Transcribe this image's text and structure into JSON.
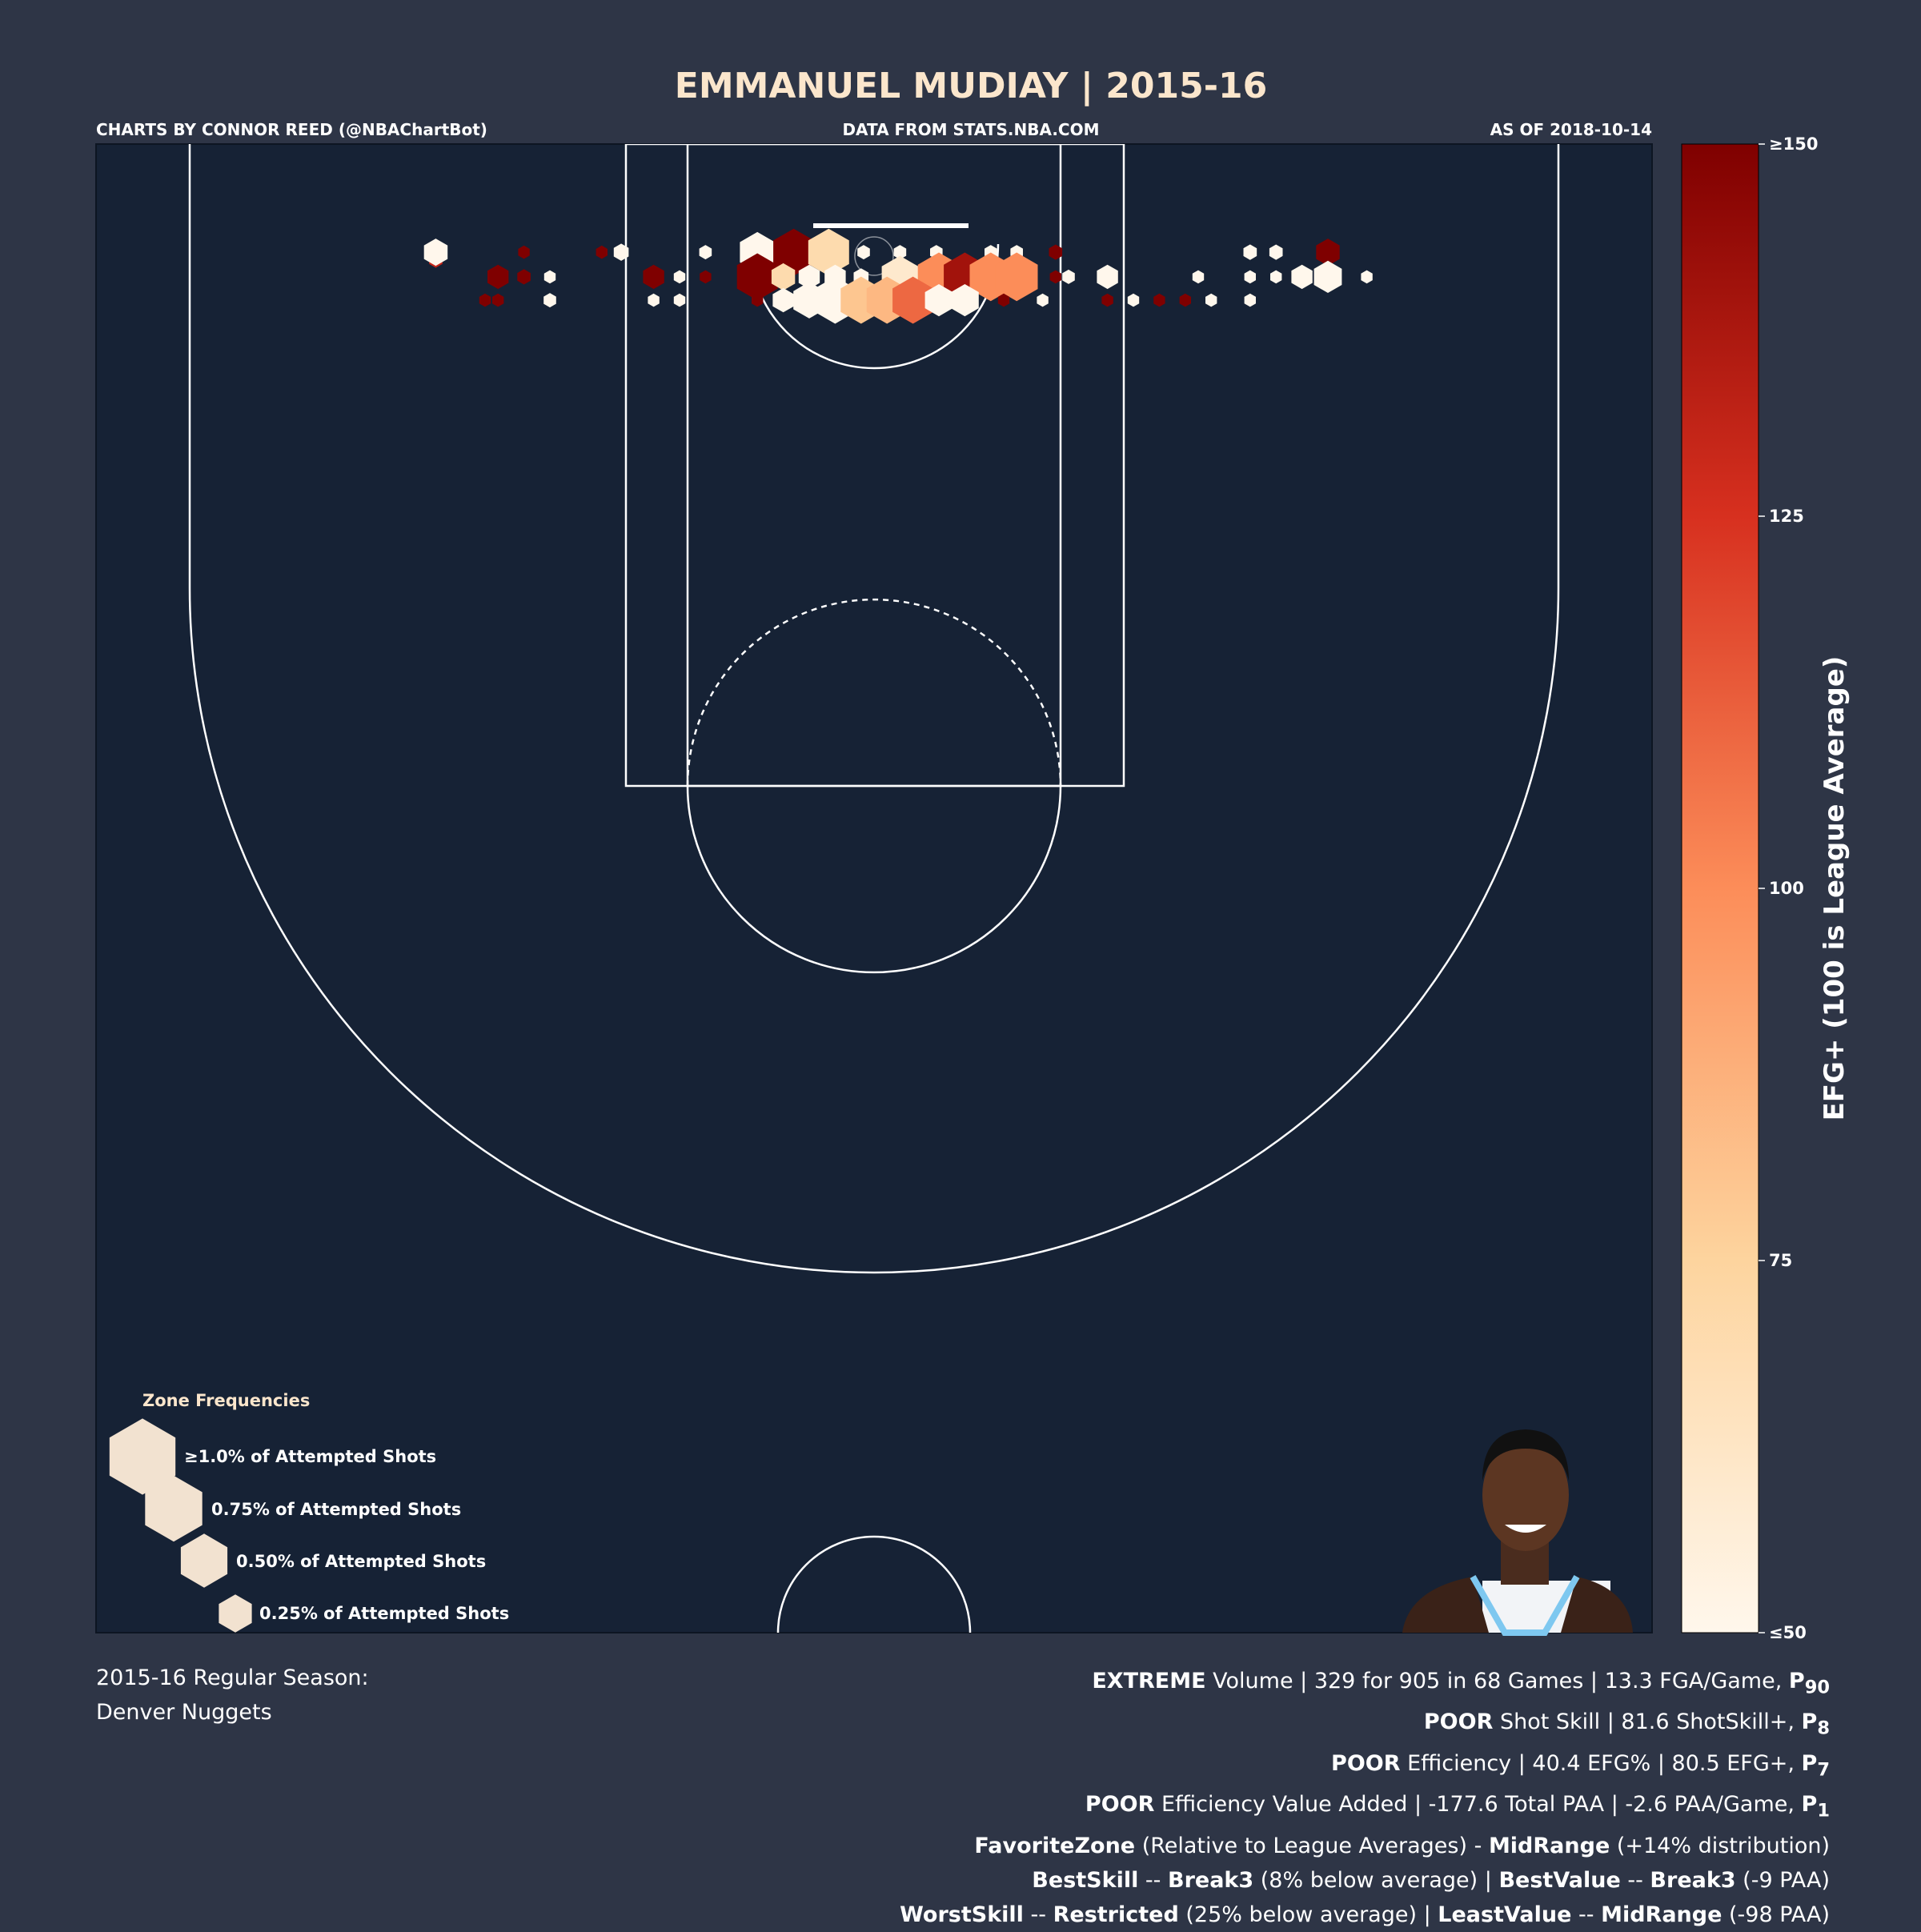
{
  "title": "EMMANUEL MUDIAY | 2015-16",
  "credits": {
    "left": "CHARTS BY CONNOR REED (@NBAChartBot)",
    "center": "DATA FROM STATS.NBA.COM",
    "right": "AS OF 2018-10-14"
  },
  "colorbar": {
    "label": "EFG+ (100 is League Average)",
    "ticks": [
      "≥150",
      "125",
      "100",
      "75",
      "≤50"
    ],
    "tick_values": [
      150,
      125,
      100,
      75,
      50
    ]
  },
  "legend": {
    "title": "Zone Frequencies",
    "items": [
      "≥1.0% of Attempted Shots",
      "0.75% of Attempted Shots",
      "0.50% of Attempted Shots",
      "0.25% of Attempted Shots"
    ],
    "values": [
      1.0,
      0.75,
      0.5,
      0.25
    ]
  },
  "season": {
    "line1": "2015-16 Regular Season:",
    "line2": "Denver Nuggets"
  },
  "stats": {
    "volume": {
      "bold": "EXTREME",
      "text": " Volume | 329 for 905 in 68 Games | 13.3 FGA/Game, ",
      "p": "P",
      "p_sub": "90"
    },
    "shot_skill": {
      "bold": "POOR",
      "text": " Shot Skill | 81.6 ShotSkill+, ",
      "p": "P",
      "p_sub": "8"
    },
    "efficiency": {
      "bold": "POOR",
      "text": " Efficiency | 40.4 EFG% | 80.5 EFG+, ",
      "p": "P",
      "p_sub": "7"
    },
    "value_added": {
      "bold": "POOR",
      "text": " Efficiency Value Added | -177.6 Total PAA | -2.6 PAA/Game, ",
      "p": "P",
      "p_sub": "1"
    },
    "favorite": {
      "b1": "FavoriteZone",
      "t1": " (Relative to League Averages) - ",
      "b2": "MidRange",
      "t2": " (+14% distribution)"
    },
    "best": {
      "b1": "BestSkill",
      "t1": " -- ",
      "b2": "Break3",
      "t2": " (8% below average) | ",
      "b3": "BestValue",
      "t3": " -- ",
      "b4": "Break3",
      "t4": " (-9 PAA)"
    },
    "worst": {
      "b1": "WorstSkill",
      "t1": " -- ",
      "b2": "Restricted",
      "t2": " (25% below average) | ",
      "b3": "LeastValue",
      "t3": " -- ",
      "b4": "MidRange",
      "t4": " (-98 PAA)"
    }
  },
  "colors": {
    "background": "#2e3546",
    "court": "#162235",
    "lines": "#ffffff",
    "text": "#ffffff",
    "title": "#fbe6cc",
    "colormap": [
      "#fff7ec",
      "#fdd49e",
      "#fc8d59",
      "#d7301f",
      "#7f0000"
    ]
  },
  "player_photo_icon": "player-headshot",
  "chart_data": {
    "type": "hexbin",
    "x_unit": "court x (0.1 ft, basket at 0)",
    "y_unit": "court y (0.1 ft, basket at 0)",
    "size": "percent of attempted shots",
    "color": "EFG+",
    "color_range": [
      50,
      150
    ],
    "hexes": [
      [
        -338,
        3,
        0.08,
        130
      ],
      [
        -338,
        -3,
        0.25,
        50
      ],
      [
        -270,
        -3,
        0.06,
        150
      ],
      [
        -210,
        -3,
        0.06,
        150
      ],
      [
        -195,
        -3,
        0.1,
        50
      ],
      [
        -130,
        -3,
        0.07,
        50
      ],
      [
        -90,
        -3,
        0.55,
        50
      ],
      [
        -62,
        -3,
        0.75,
        150
      ],
      [
        -35,
        -3,
        0.75,
        70
      ],
      [
        -8,
        -3,
        0.07,
        50
      ],
      [
        20,
        -3,
        0.07,
        50
      ],
      [
        48,
        -3,
        0.07,
        50
      ],
      [
        90,
        -3,
        0.07,
        50
      ],
      [
        110,
        -3,
        0.07,
        50
      ],
      [
        140,
        -3,
        0.08,
        150
      ],
      [
        290,
        -3,
        0.08,
        50
      ],
      [
        290,
        -3,
        0.08,
        50
      ],
      [
        310,
        -3,
        0.08,
        50
      ],
      [
        350,
        -3,
        0.25,
        150
      ],
      [
        -290,
        16,
        0.2,
        150
      ],
      [
        -270,
        16,
        0.08,
        150
      ],
      [
        -250,
        16,
        0.06,
        50
      ],
      [
        -170,
        16,
        0.2,
        150
      ],
      [
        -150,
        16,
        0.06,
        50
      ],
      [
        -130,
        16,
        0.06,
        150
      ],
      [
        -90,
        16,
        0.75,
        150
      ],
      [
        -70,
        16,
        0.25,
        70
      ],
      [
        -50,
        16,
        0.2,
        50
      ],
      [
        -30,
        16,
        0.2,
        50
      ],
      [
        -10,
        16,
        0.1,
        50
      ],
      [
        20,
        16,
        0.6,
        60
      ],
      [
        50,
        16,
        0.8,
        100
      ],
      [
        70,
        16,
        0.8,
        140
      ],
      [
        90,
        16,
        0.8,
        100
      ],
      [
        110,
        16,
        0.8,
        100
      ],
      [
        140,
        16,
        0.06,
        150
      ],
      [
        150,
        16,
        0.07,
        50
      ],
      [
        180,
        16,
        0.2,
        50
      ],
      [
        250,
        16,
        0.06,
        50
      ],
      [
        290,
        16,
        0.06,
        50
      ],
      [
        310,
        16,
        0.06,
        50
      ],
      [
        330,
        16,
        0.2,
        50
      ],
      [
        350,
        16,
        0.35,
        50
      ],
      [
        380,
        16,
        0.06,
        50
      ],
      [
        -300,
        34,
        0.06,
        150
      ],
      [
        -290,
        34,
        0.06,
        150
      ],
      [
        -250,
        34,
        0.07,
        50
      ],
      [
        -170,
        34,
        0.06,
        50
      ],
      [
        -150,
        34,
        0.06,
        50
      ],
      [
        -90,
        34,
        0.06,
        150
      ],
      [
        -70,
        34,
        0.2,
        50
      ],
      [
        -50,
        34,
        0.45,
        50
      ],
      [
        -30,
        34,
        0.75,
        50
      ],
      [
        -10,
        34,
        0.75,
        80
      ],
      [
        10,
        34,
        0.75,
        85
      ],
      [
        30,
        34,
        0.75,
        110
      ],
      [
        50,
        34,
        0.35,
        50
      ],
      [
        70,
        34,
        0.35,
        50
      ],
      [
        100,
        34,
        0.06,
        150
      ],
      [
        130,
        34,
        0.06,
        50
      ],
      [
        180,
        34,
        0.06,
        150
      ],
      [
        200,
        34,
        0.06,
        50
      ],
      [
        220,
        34,
        0.06,
        150
      ],
      [
        240,
        34,
        0.06,
        150
      ],
      [
        260,
        34,
        0.06,
        50
      ],
      [
        290,
        34,
        0.06,
        50
      ]
    ]
  }
}
